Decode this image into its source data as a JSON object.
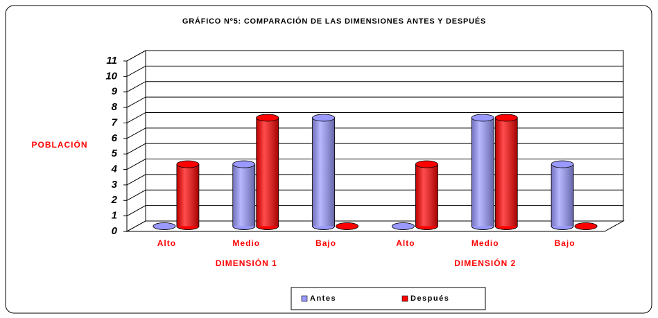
{
  "chart_data": {
    "type": "bar3d",
    "title": "GRÁFICO Nº5: COMPARACIÓN DE LAS DIMENSIONES ANTES Y DESPUÉS",
    "y_label": "POBLACIÓN",
    "categories": [
      "Alto",
      "Medio",
      "Bajo",
      "Alto",
      "Medio",
      "Bajo"
    ],
    "category_groups": [
      "DIMENSIÓN 1",
      "DIMENSIÓN 2"
    ],
    "series": [
      {
        "name": "Antes",
        "color": "#9999ff",
        "values": [
          0,
          4,
          7,
          0,
          7,
          4
        ]
      },
      {
        "name": "Después",
        "color": "#ff0000",
        "values": [
          4,
          7,
          0,
          4,
          7,
          0
        ]
      }
    ],
    "ylim": [
      0,
      11
    ],
    "yticks": [
      0,
      1,
      2,
      3,
      4,
      5,
      6,
      7,
      8,
      9,
      10,
      11
    ],
    "grid": true,
    "legend": "bottom"
  }
}
